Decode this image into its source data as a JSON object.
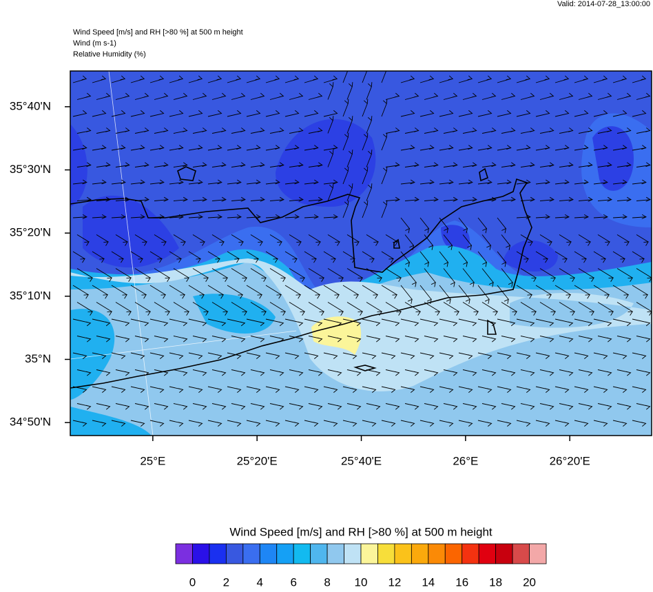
{
  "header": {
    "valid": "Valid: 2014-07-28_13:00:00",
    "title_lines": [
      "Wind Speed [m/s] and RH [>80 %] at 500 m height",
      "Wind   (m s-1)",
      "Relative Humidity   (%)"
    ]
  },
  "map": {
    "xlim": [
      24.736,
      26.595
    ],
    "ylim": [
      34.799,
      35.761
    ],
    "xticks": [
      {
        "value": 25,
        "label": "25°E"
      },
      {
        "value": 25.3333,
        "label": "25°20'E"
      },
      {
        "value": 25.6667,
        "label": "25°40'E"
      },
      {
        "value": 26,
        "label": "26°E"
      },
      {
        "value": 26.3333,
        "label": "26°20'E"
      }
    ],
    "yticks": [
      {
        "value": 34.8333,
        "label": "34°50'N"
      },
      {
        "value": 35,
        "label": "35°N"
      },
      {
        "value": 35.1667,
        "label": "35°10'N"
      },
      {
        "value": 35.3333,
        "label": "35°20'N"
      },
      {
        "value": 35.5,
        "label": "35°30'N"
      },
      {
        "value": 35.6667,
        "label": "35°40'N"
      }
    ]
  },
  "colorbar": {
    "title": "Wind Speed [m/s] and RH [>80 %] at 500 m height",
    "colors": [
      "#7b2fe0",
      "#2a10e8",
      "#1a30f0",
      "#3858e0",
      "#3a6ef0",
      "#1e86f5",
      "#15a0f5",
      "#12baf0",
      "#4fb6ee",
      "#90c8ee",
      "#bfe2f5",
      "#fbf59a",
      "#f7de3a",
      "#fbc21a",
      "#fba90c",
      "#fb8a06",
      "#fb6500",
      "#f43210",
      "#e00010",
      "#c8000e",
      "#d84a4a",
      "#f3a8a8"
    ],
    "ticks": [
      0,
      2,
      4,
      6,
      8,
      10,
      12,
      14,
      16,
      18,
      20
    ]
  }
}
